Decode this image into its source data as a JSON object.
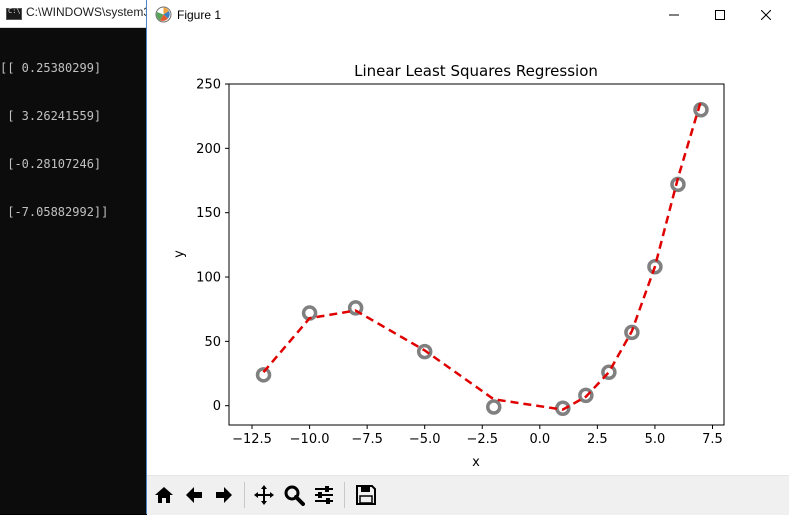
{
  "console": {
    "title": "C:\\WINDOWS\\system3",
    "lines": [
      "[[ 0.25380299]",
      " [ 3.26241559]",
      " [-0.28107246]",
      " [-7.05882992]]"
    ]
  },
  "figure_window": {
    "title": "Figure 1",
    "controls": [
      "minimize",
      "maximize",
      "close"
    ]
  },
  "toolbar": {
    "buttons": [
      {
        "name": "home-icon"
      },
      {
        "name": "back-arrow-icon"
      },
      {
        "name": "forward-arrow-icon"
      },
      {
        "name": "pan-icon"
      },
      {
        "name": "zoom-icon"
      },
      {
        "name": "configure-subplots-icon"
      },
      {
        "name": "save-icon"
      }
    ]
  },
  "chart_data": {
    "type": "scatter",
    "title": "Linear Least Squares Regression",
    "xlabel": "x",
    "ylabel": "y",
    "xlim": [
      -13.5,
      8
    ],
    "ylim": [
      -15,
      250
    ],
    "xticks": [
      -12.5,
      -10.0,
      -7.5,
      -5.0,
      -2.5,
      0.0,
      2.5,
      5.0,
      7.5
    ],
    "xtick_labels": [
      "−12.5",
      "−10.0",
      "−7.5",
      "−5.0",
      "−2.5",
      "0.0",
      "2.5",
      "5.0",
      "7.5"
    ],
    "yticks": [
      0,
      50,
      100,
      150,
      200,
      250
    ],
    "ytick_labels": [
      "0",
      "50",
      "100",
      "150",
      "200",
      "250"
    ],
    "grid": false,
    "series": [
      {
        "style": "markers",
        "color": "#7a7a7a",
        "x": [
          -12,
          -10,
          -8,
          -5,
          -2,
          1,
          2,
          3,
          4,
          5,
          6,
          7
        ],
        "y": [
          24,
          72,
          76,
          42,
          -1,
          -2,
          8,
          26,
          57,
          108,
          172,
          230
        ]
      },
      {
        "style": "dashed-line",
        "color": "#e00000",
        "x": [
          -12,
          -10,
          -8,
          -5,
          -2,
          1,
          2,
          3,
          4,
          5,
          6,
          7
        ],
        "y": [
          26,
          68,
          74,
          43,
          5,
          -3,
          7,
          26,
          58,
          108,
          177,
          237
        ]
      }
    ]
  }
}
